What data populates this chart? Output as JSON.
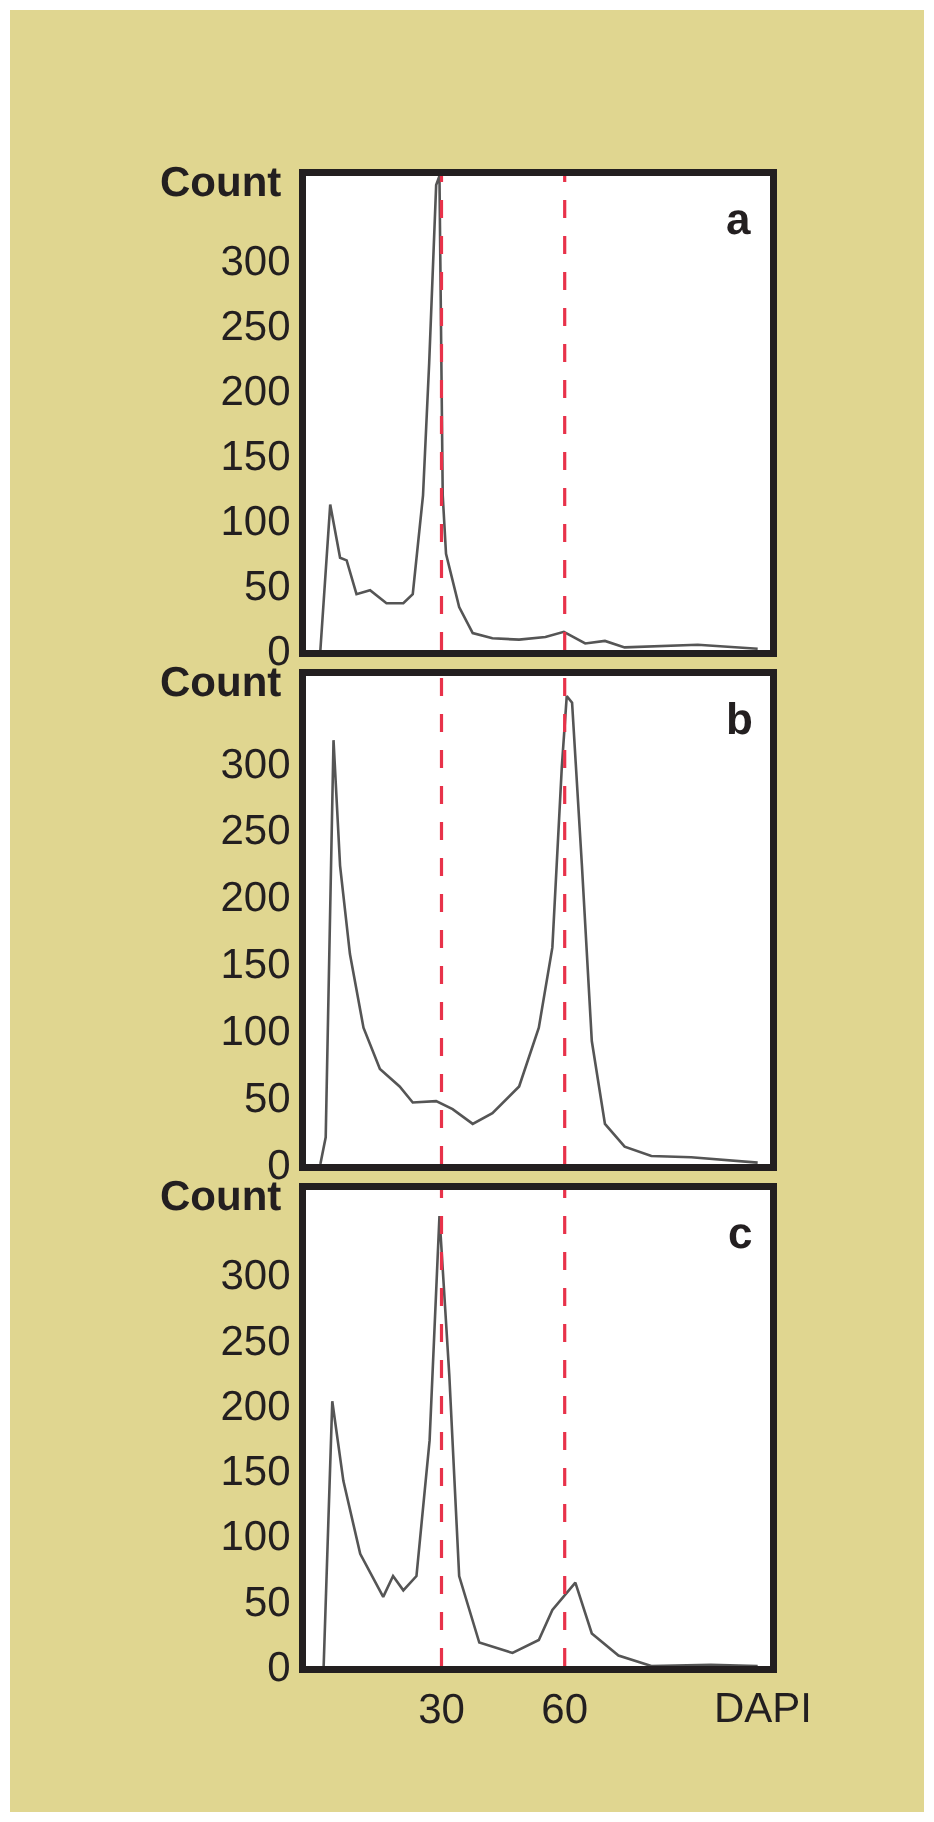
{
  "chart_data": [
    {
      "type": "line",
      "ylabel": "Count",
      "annotations": [
        "a"
      ],
      "xlim": [
        -3,
        110
      ],
      "ylim": [
        0,
        365
      ],
      "yticks": [
        0,
        50,
        100,
        150,
        200,
        250,
        300
      ],
      "tick_labels": "y",
      "x": [
        0.5,
        2.9,
        5.3,
        6.9,
        9.3,
        12.6,
        16.6,
        20.7,
        23,
        25.5,
        27,
        28.7,
        29.5,
        30.3,
        31.1,
        34.3,
        37.6,
        42.4,
        48.9,
        55.3,
        59.8,
        65,
        69.8,
        74.6,
        92.4,
        107
      ],
      "series": [
        {
          "color": "#555555",
          "values": [
            0,
            112,
            71,
            69,
            43,
            46,
            36,
            36,
            43,
            119,
            221,
            358,
            365,
            119,
            74,
            33,
            13,
            9,
            8,
            10,
            14,
            5,
            7,
            2,
            4,
            1
          ]
        }
      ],
      "ref_lines": [
        {
          "axis": "x",
          "value": 30,
          "color": "#e8324a",
          "line_style": "dashed"
        },
        {
          "axis": "x",
          "value": 60,
          "color": "#e8324a",
          "line_style": "dashed"
        }
      ]
    },
    {
      "type": "line",
      "ylabel": "Count",
      "annotations": [
        "b"
      ],
      "xlim": [
        -3,
        110
      ],
      "ylim": [
        0,
        365
      ],
      "yticks": [
        0,
        50,
        100,
        150,
        200,
        250,
        300
      ],
      "tick_labels": "y",
      "x": [
        0.5,
        1.8,
        3.7,
        5.3,
        7.7,
        11,
        15,
        19.8,
        23,
        28.7,
        32.7,
        37.6,
        42.4,
        48.9,
        53.7,
        57,
        59.3,
        60.5,
        61.8,
        64.2,
        66.6,
        69.8,
        74.6,
        81.1,
        90.8,
        107
      ],
      "series": [
        {
          "color": "#555555",
          "values": [
            0,
            20,
            317,
            223,
            157,
            102,
            71,
            58,
            46,
            47,
            41,
            30,
            38,
            58,
            102,
            162,
            297,
            350,
            345,
            223,
            92,
            30,
            13,
            6,
            5,
            1
          ]
        }
      ],
      "ref_lines": [
        {
          "axis": "x",
          "value": 30,
          "color": "#e8324a",
          "line_style": "dashed"
        },
        {
          "axis": "x",
          "value": 60,
          "color": "#e8324a",
          "line_style": "dashed"
        }
      ]
    },
    {
      "type": "line",
      "ylabel": "Count",
      "xlabel": "DAPI",
      "annotations": [
        "c"
      ],
      "xlim": [
        -3,
        110
      ],
      "ylim": [
        0,
        365
      ],
      "yticks": [
        0,
        50,
        100,
        150,
        200,
        250,
        300
      ],
      "xticks": [
        30,
        60
      ],
      "x": [
        1.3,
        3.4,
        6.1,
        10.2,
        15.8,
        18.2,
        20.7,
        23.9,
        27.1,
        29.5,
        31.9,
        34.3,
        39.2,
        47.3,
        53.7,
        57,
        62.6,
        66.6,
        73.1,
        81.1,
        95.6,
        107
      ],
      "series": [
        {
          "color": "#555555",
          "values": [
            0,
            203,
            142,
            86,
            53,
            69,
            58,
            69,
            173,
            345,
            223,
            69,
            18,
            10,
            20,
            43,
            64,
            25,
            8,
            0,
            1,
            0
          ]
        }
      ],
      "ref_lines": [
        {
          "axis": "x",
          "value": 30,
          "color": "#e8324a",
          "line_style": "dashed"
        },
        {
          "axis": "x",
          "value": 60,
          "color": "#e8324a",
          "line_style": "dashed"
        }
      ]
    }
  ]
}
